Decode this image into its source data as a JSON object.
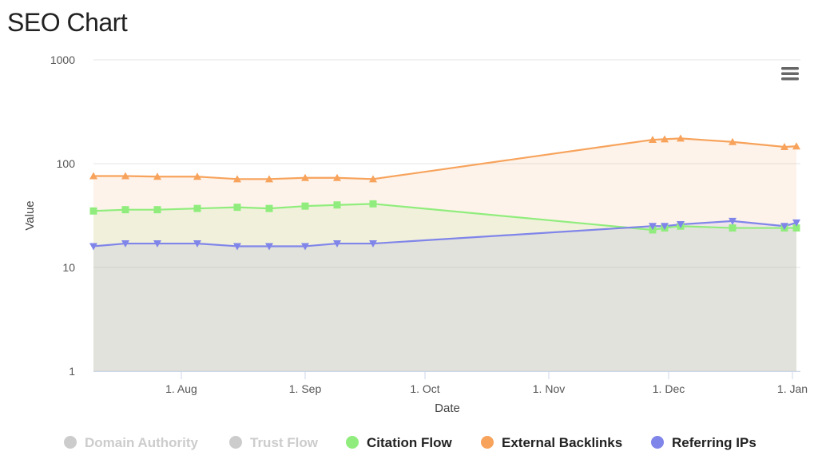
{
  "page": {
    "title": "SEO Chart"
  },
  "colors": {
    "citation_flow": "#90ed7d",
    "external_backlinks": "#f7a35c",
    "referring_ips": "#8085e9",
    "hidden_series": "#cccccc"
  },
  "chart_data": {
    "type": "area",
    "title": "",
    "xlabel": "Date",
    "ylabel": "Value",
    "yscale": "log",
    "ylim": [
      1,
      1000
    ],
    "ytick_labels": [
      "1",
      "10",
      "100",
      "1000"
    ],
    "xlim": [
      "2016-07-10",
      "2017-01-03"
    ],
    "xtick_labels": [
      "1. Aug",
      "1. Sep",
      "1. Oct",
      "1. Nov",
      "1. Dec",
      "1. Jan"
    ],
    "grid": "horizontal",
    "legend_position": "bottom-center",
    "series": [
      {
        "name": "Domain Authority",
        "visible": false,
        "color": "#cccccc",
        "marker": "circle",
        "points": []
      },
      {
        "name": "Trust Flow",
        "visible": false,
        "color": "#cccccc",
        "marker": "circle",
        "points": []
      },
      {
        "name": "Citation Flow",
        "visible": true,
        "color": "#90ed7d",
        "marker": "square",
        "points": [
          [
            "2016-07-10",
            35
          ],
          [
            "2016-07-18",
            36
          ],
          [
            "2016-07-26",
            36
          ],
          [
            "2016-08-05",
            37
          ],
          [
            "2016-08-15",
            38
          ],
          [
            "2016-08-23",
            37
          ],
          [
            "2016-09-01",
            39
          ],
          [
            "2016-09-09",
            40
          ],
          [
            "2016-09-18",
            41
          ],
          [
            "2016-11-27",
            23
          ],
          [
            "2016-11-30",
            24
          ],
          [
            "2016-12-04",
            25
          ],
          [
            "2016-12-17",
            24
          ],
          [
            "2016-12-30",
            24
          ],
          [
            "2017-01-02",
            24
          ]
        ]
      },
      {
        "name": "External Backlinks",
        "visible": true,
        "color": "#f7a35c",
        "marker": "triangle",
        "points": [
          [
            "2016-07-10",
            76
          ],
          [
            "2016-07-18",
            76
          ],
          [
            "2016-07-26",
            75
          ],
          [
            "2016-08-05",
            75
          ],
          [
            "2016-08-15",
            71
          ],
          [
            "2016-08-23",
            71
          ],
          [
            "2016-09-01",
            73
          ],
          [
            "2016-09-09",
            73
          ],
          [
            "2016-09-18",
            71
          ],
          [
            "2016-11-27",
            170
          ],
          [
            "2016-11-30",
            172
          ],
          [
            "2016-12-04",
            175
          ],
          [
            "2016-12-17",
            162
          ],
          [
            "2016-12-30",
            145
          ],
          [
            "2017-01-02",
            147
          ]
        ]
      },
      {
        "name": "Referring IPs",
        "visible": true,
        "color": "#8085e9",
        "marker": "triangle-down",
        "points": [
          [
            "2016-07-10",
            16
          ],
          [
            "2016-07-18",
            17
          ],
          [
            "2016-07-26",
            17
          ],
          [
            "2016-08-05",
            17
          ],
          [
            "2016-08-15",
            16
          ],
          [
            "2016-08-23",
            16
          ],
          [
            "2016-09-01",
            16
          ],
          [
            "2016-09-09",
            17
          ],
          [
            "2016-09-18",
            17
          ],
          [
            "2016-11-27",
            25
          ],
          [
            "2016-11-30",
            25
          ],
          [
            "2016-12-04",
            26
          ],
          [
            "2016-12-17",
            28
          ],
          [
            "2016-12-30",
            25
          ],
          [
            "2017-01-02",
            27
          ]
        ]
      }
    ]
  }
}
